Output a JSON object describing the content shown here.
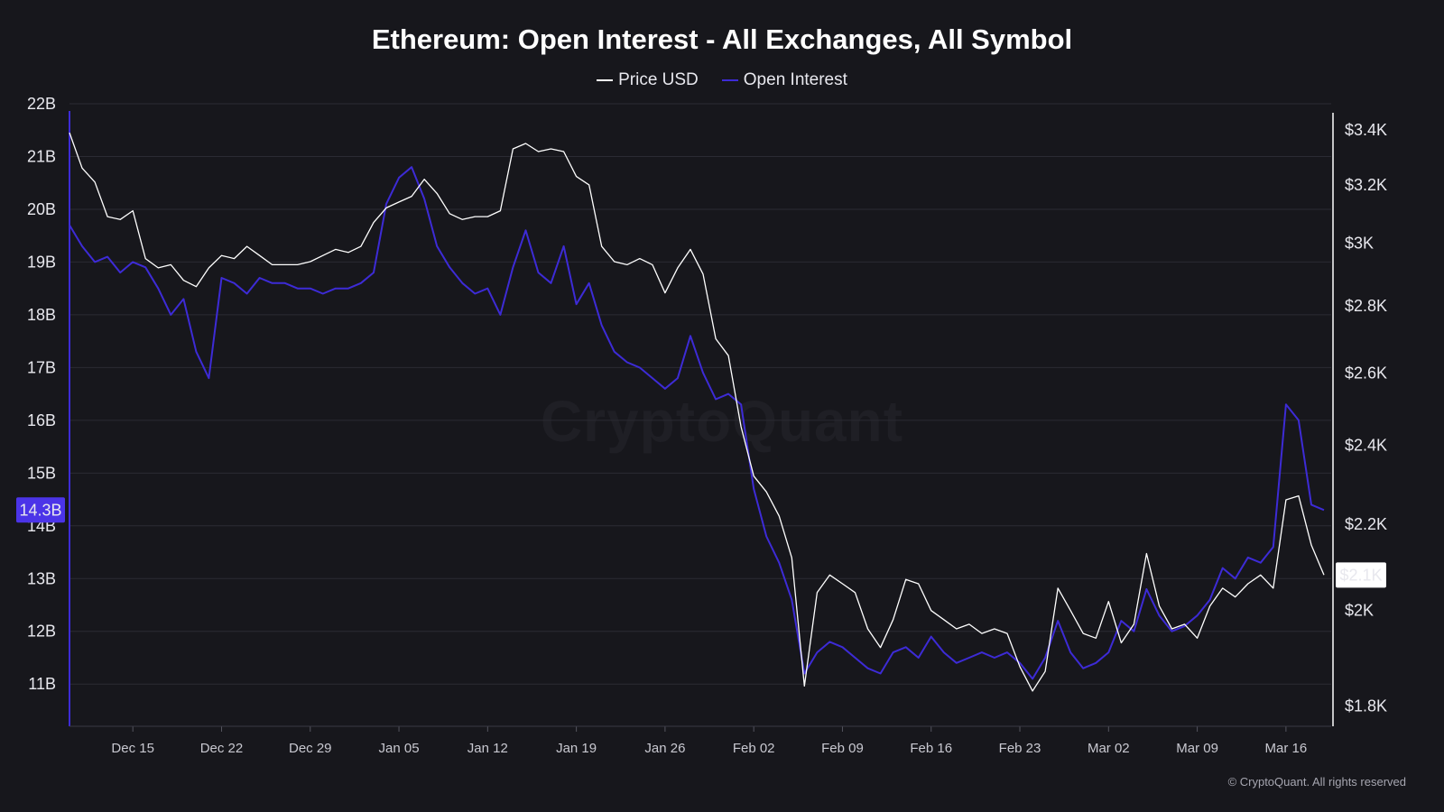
{
  "chart_data": {
    "type": "line",
    "title": "Ethereum: Open Interest - All Exchanges, All Symbol",
    "legend": [
      "Price USD",
      "Open Interest"
    ],
    "legend_placement": "top-center",
    "grid": true,
    "watermark": "CryptoQuant",
    "copyright": "© CryptoQuant. All rights reserved",
    "colors": {
      "price": "#ffffff",
      "open_interest": "#3d2bd6",
      "oi_badge_bg": "#4b34e8",
      "price_badge_bg": "#ffffff",
      "background": "#17171c",
      "grid": "#2b2b33"
    },
    "x_ticks": [
      "Dec 15",
      "Dec 22",
      "Dec 29",
      "Jan 05",
      "Jan 12",
      "Jan 19",
      "Jan 26",
      "Feb 02",
      "Feb 09",
      "Feb 16",
      "Feb 23",
      "Mar 02",
      "Mar 09",
      "Mar 16"
    ],
    "x_range": [
      "Dec 10",
      "Mar 19"
    ],
    "y_left": {
      "ticks": [
        "22B",
        "21B",
        "20B",
        "19B",
        "18B",
        "17B",
        "16B",
        "15B",
        "14B",
        "13B",
        "12B",
        "11B"
      ],
      "range": [
        10.2,
        22
      ],
      "current_label": "14.3B",
      "current_value": 14.3
    },
    "y_right": {
      "ticks": [
        "$3.4K",
        "$3.2K",
        "$3K",
        "$2.8K",
        "$2.6K",
        "$2.4K",
        "$2.2K",
        "$2K",
        "$1.8K"
      ],
      "scale": "log",
      "range": [
        1760,
        3500
      ],
      "current_label": "$2.1K",
      "current_value": 2080
    },
    "series": [
      {
        "name": "Open Interest",
        "unit": "B",
        "axis": "left",
        "points": [
          [
            "Dec 10",
            19.7
          ],
          [
            "Dec 11",
            19.3
          ],
          [
            "Dec 12",
            19.0
          ],
          [
            "Dec 13",
            19.1
          ],
          [
            "Dec 14",
            18.8
          ],
          [
            "Dec 15",
            19.0
          ],
          [
            "Dec 16",
            18.9
          ],
          [
            "Dec 17",
            18.5
          ],
          [
            "Dec 18",
            18.0
          ],
          [
            "Dec 19",
            18.3
          ],
          [
            "Dec 20",
            17.3
          ],
          [
            "Dec 21",
            16.8
          ],
          [
            "Dec 22",
            18.7
          ],
          [
            "Dec 23",
            18.6
          ],
          [
            "Dec 24",
            18.4
          ],
          [
            "Dec 25",
            18.7
          ],
          [
            "Dec 26",
            18.6
          ],
          [
            "Dec 27",
            18.6
          ],
          [
            "Dec 28",
            18.5
          ],
          [
            "Dec 29",
            18.5
          ],
          [
            "Dec 30",
            18.4
          ],
          [
            "Dec 31",
            18.5
          ],
          [
            "Jan 01",
            18.5
          ],
          [
            "Jan 02",
            18.6
          ],
          [
            "Jan 03",
            18.8
          ],
          [
            "Jan 04",
            20.1
          ],
          [
            "Jan 05",
            20.6
          ],
          [
            "Jan 06",
            20.8
          ],
          [
            "Jan 07",
            20.2
          ],
          [
            "Jan 08",
            19.3
          ],
          [
            "Jan 09",
            18.9
          ],
          [
            "Jan 10",
            18.6
          ],
          [
            "Jan 11",
            18.4
          ],
          [
            "Jan 12",
            18.5
          ],
          [
            "Jan 13",
            18.0
          ],
          [
            "Jan 14",
            18.9
          ],
          [
            "Jan 15",
            19.6
          ],
          [
            "Jan 16",
            18.8
          ],
          [
            "Jan 17",
            18.6
          ],
          [
            "Jan 18",
            19.3
          ],
          [
            "Jan 19",
            18.2
          ],
          [
            "Jan 20",
            18.6
          ],
          [
            "Jan 21",
            17.8
          ],
          [
            "Jan 22",
            17.3
          ],
          [
            "Jan 23",
            17.1
          ],
          [
            "Jan 24",
            17.0
          ],
          [
            "Jan 25",
            16.8
          ],
          [
            "Jan 26",
            16.6
          ],
          [
            "Jan 27",
            16.8
          ],
          [
            "Jan 28",
            17.6
          ],
          [
            "Jan 29",
            16.9
          ],
          [
            "Jan 30",
            16.4
          ],
          [
            "Jan 31",
            16.5
          ],
          [
            "Feb 01",
            16.3
          ],
          [
            "Feb 02",
            14.7
          ],
          [
            "Feb 03",
            13.8
          ],
          [
            "Feb 04",
            13.3
          ],
          [
            "Feb 05",
            12.6
          ],
          [
            "Feb 06",
            11.2
          ],
          [
            "Feb 07",
            11.6
          ],
          [
            "Feb 08",
            11.8
          ],
          [
            "Feb 09",
            11.7
          ],
          [
            "Feb 10",
            11.5
          ],
          [
            "Feb 11",
            11.3
          ],
          [
            "Feb 12",
            11.2
          ],
          [
            "Feb 13",
            11.6
          ],
          [
            "Feb 14",
            11.7
          ],
          [
            "Feb 15",
            11.5
          ],
          [
            "Feb 16",
            11.9
          ],
          [
            "Feb 17",
            11.6
          ],
          [
            "Feb 18",
            11.4
          ],
          [
            "Feb 19",
            11.5
          ],
          [
            "Feb 20",
            11.6
          ],
          [
            "Feb 21",
            11.5
          ],
          [
            "Feb 22",
            11.6
          ],
          [
            "Feb 23",
            11.4
          ],
          [
            "Feb 24",
            11.1
          ],
          [
            "Feb 25",
            11.5
          ],
          [
            "Feb 26",
            12.2
          ],
          [
            "Feb 27",
            11.6
          ],
          [
            "Feb 28",
            11.3
          ],
          [
            "Mar 01",
            11.4
          ],
          [
            "Mar 02",
            11.6
          ],
          [
            "Mar 03",
            12.2
          ],
          [
            "Mar 04",
            12.0
          ],
          [
            "Mar 05",
            12.8
          ],
          [
            "Mar 06",
            12.3
          ],
          [
            "Mar 07",
            12.0
          ],
          [
            "Mar 08",
            12.1
          ],
          [
            "Mar 09",
            12.3
          ],
          [
            "Mar 10",
            12.6
          ],
          [
            "Mar 11",
            13.2
          ],
          [
            "Mar 12",
            13.0
          ],
          [
            "Mar 13",
            13.4
          ],
          [
            "Mar 14",
            13.3
          ],
          [
            "Mar 15",
            13.6
          ],
          [
            "Mar 16",
            16.3
          ],
          [
            "Mar 17",
            16.0
          ],
          [
            "Mar 18",
            14.4
          ],
          [
            "Mar 19",
            14.3
          ]
        ]
      },
      {
        "name": "Price USD",
        "unit": "USD",
        "axis": "right",
        "points": [
          [
            "Dec 10",
            3390
          ],
          [
            "Dec 11",
            3260
          ],
          [
            "Dec 12",
            3210
          ],
          [
            "Dec 13",
            3090
          ],
          [
            "Dec 14",
            3080
          ],
          [
            "Dec 15",
            3110
          ],
          [
            "Dec 16",
            2950
          ],
          [
            "Dec 17",
            2920
          ],
          [
            "Dec 18",
            2930
          ],
          [
            "Dec 19",
            2880
          ],
          [
            "Dec 20",
            2860
          ],
          [
            "Dec 21",
            2920
          ],
          [
            "Dec 22",
            2960
          ],
          [
            "Dec 23",
            2950
          ],
          [
            "Dec 24",
            2990
          ],
          [
            "Dec 25",
            2960
          ],
          [
            "Dec 26",
            2930
          ],
          [
            "Dec 27",
            2930
          ],
          [
            "Dec 28",
            2930
          ],
          [
            "Dec 29",
            2940
          ],
          [
            "Dec 30",
            2960
          ],
          [
            "Dec 31",
            2980
          ],
          [
            "Jan 01",
            2970
          ],
          [
            "Jan 02",
            2990
          ],
          [
            "Jan 03",
            3070
          ],
          [
            "Jan 04",
            3120
          ],
          [
            "Jan 05",
            3140
          ],
          [
            "Jan 06",
            3160
          ],
          [
            "Jan 07",
            3220
          ],
          [
            "Jan 08",
            3170
          ],
          [
            "Jan 09",
            3100
          ],
          [
            "Jan 10",
            3080
          ],
          [
            "Jan 11",
            3090
          ],
          [
            "Jan 12",
            3090
          ],
          [
            "Jan 13",
            3110
          ],
          [
            "Jan 14",
            3330
          ],
          [
            "Jan 15",
            3350
          ],
          [
            "Jan 16",
            3320
          ],
          [
            "Jan 17",
            3330
          ],
          [
            "Jan 18",
            3320
          ],
          [
            "Jan 19",
            3230
          ],
          [
            "Jan 20",
            3200
          ],
          [
            "Jan 21",
            2990
          ],
          [
            "Jan 22",
            2940
          ],
          [
            "Jan 23",
            2930
          ],
          [
            "Jan 24",
            2950
          ],
          [
            "Jan 25",
            2930
          ],
          [
            "Jan 26",
            2840
          ],
          [
            "Jan 27",
            2920
          ],
          [
            "Jan 28",
            2980
          ],
          [
            "Jan 29",
            2900
          ],
          [
            "Jan 30",
            2700
          ],
          [
            "Jan 31",
            2650
          ],
          [
            "Feb 01",
            2450
          ],
          [
            "Feb 02",
            2320
          ],
          [
            "Feb 03",
            2280
          ],
          [
            "Feb 04",
            2220
          ],
          [
            "Feb 05",
            2120
          ],
          [
            "Feb 06",
            1840
          ],
          [
            "Feb 07",
            2040
          ],
          [
            "Feb 08",
            2080
          ],
          [
            "Feb 09",
            2060
          ],
          [
            "Feb 10",
            2040
          ],
          [
            "Feb 11",
            1960
          ],
          [
            "Feb 12",
            1920
          ],
          [
            "Feb 13",
            1980
          ],
          [
            "Feb 14",
            2070
          ],
          [
            "Feb 15",
            2060
          ],
          [
            "Feb 16",
            2000
          ],
          [
            "Feb 17",
            1980
          ],
          [
            "Feb 18",
            1960
          ],
          [
            "Feb 19",
            1970
          ],
          [
            "Feb 20",
            1950
          ],
          [
            "Feb 21",
            1960
          ],
          [
            "Feb 22",
            1950
          ],
          [
            "Feb 23",
            1880
          ],
          [
            "Feb 24",
            1830
          ],
          [
            "Feb 25",
            1870
          ],
          [
            "Feb 26",
            2050
          ],
          [
            "Feb 27",
            2000
          ],
          [
            "Feb 28",
            1950
          ],
          [
            "Mar 01",
            1940
          ],
          [
            "Mar 02",
            2020
          ],
          [
            "Mar 03",
            1930
          ],
          [
            "Mar 04",
            1970
          ],
          [
            "Mar 05",
            2130
          ],
          [
            "Mar 06",
            2010
          ],
          [
            "Mar 07",
            1960
          ],
          [
            "Mar 08",
            1970
          ],
          [
            "Mar 09",
            1940
          ],
          [
            "Mar 10",
            2010
          ],
          [
            "Mar 11",
            2050
          ],
          [
            "Mar 12",
            2030
          ],
          [
            "Mar 13",
            2060
          ],
          [
            "Mar 14",
            2080
          ],
          [
            "Mar 15",
            2050
          ],
          [
            "Mar 16",
            2260
          ],
          [
            "Mar 17",
            2270
          ],
          [
            "Mar 18",
            2150
          ],
          [
            "Mar 19",
            2080
          ]
        ]
      }
    ]
  }
}
